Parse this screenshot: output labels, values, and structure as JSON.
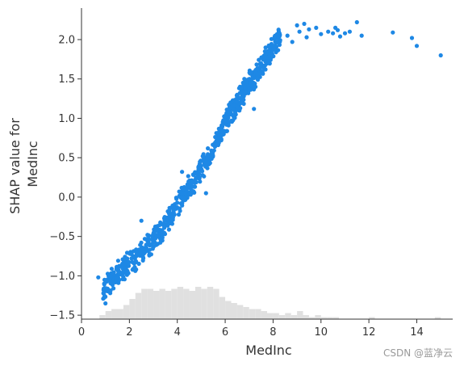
{
  "chart_data": {
    "type": "scatter",
    "xlabel": "MedInc",
    "ylabel_lines": [
      "SHAP value for",
      "MedInc"
    ],
    "xlim": [
      0,
      15.5
    ],
    "ylim": [
      -1.55,
      2.4
    ],
    "xticks": [
      0,
      2,
      4,
      6,
      8,
      10,
      12,
      14
    ],
    "yticks": [
      -1.5,
      -1.0,
      -0.5,
      0.0,
      0.5,
      1.0,
      1.5,
      2.0
    ],
    "ytick_labels": [
      "−1.5",
      "−1.0",
      "−0.5",
      "0.0",
      "0.5",
      "1.0",
      "1.5",
      "2.0"
    ],
    "grid": false,
    "legend": "none",
    "point_color": "#1e88e5",
    "histogram_color": "#e0e0e0",
    "trend": [
      [
        0.5,
        -1.05
      ],
      [
        1.0,
        -1.15
      ],
      [
        1.5,
        -0.95
      ],
      [
        2.0,
        -0.85
      ],
      [
        2.5,
        -0.7
      ],
      [
        3.0,
        -0.55
      ],
      [
        3.5,
        -0.35
      ],
      [
        4.0,
        -0.1
      ],
      [
        4.5,
        0.12
      ],
      [
        5.0,
        0.35
      ],
      [
        5.5,
        0.6
      ],
      [
        6.0,
        0.95
      ],
      [
        6.5,
        1.2
      ],
      [
        7.0,
        1.45
      ],
      [
        7.5,
        1.65
      ],
      [
        8.0,
        1.9
      ],
      [
        8.5,
        2.12
      ]
    ],
    "outliers": [
      [
        0.7,
        -1.02
      ],
      [
        1.0,
        -1.35
      ],
      [
        1.2,
        -1.22
      ],
      [
        2.5,
        -0.3
      ],
      [
        4.2,
        0.32
      ],
      [
        5.2,
        0.05
      ],
      [
        6.8,
        1.5
      ],
      [
        7.2,
        1.12
      ],
      [
        8.6,
        2.05
      ],
      [
        8.8,
        1.97
      ],
      [
        9.0,
        2.18
      ],
      [
        9.1,
        2.1
      ],
      [
        9.3,
        2.2
      ],
      [
        9.4,
        2.03
      ],
      [
        9.5,
        2.13
      ],
      [
        9.8,
        2.15
      ],
      [
        10.0,
        2.07
      ],
      [
        10.3,
        2.1
      ],
      [
        10.5,
        2.08
      ],
      [
        10.6,
        2.15
      ],
      [
        10.7,
        2.12
      ],
      [
        10.8,
        2.04
      ],
      [
        11.0,
        2.08
      ],
      [
        11.2,
        2.1
      ],
      [
        11.5,
        2.22
      ],
      [
        11.7,
        2.05
      ],
      [
        13.0,
        2.09
      ],
      [
        13.8,
        2.02
      ],
      [
        14.0,
        1.92
      ],
      [
        15.0,
        1.8
      ]
    ],
    "histogram": {
      "bin_start": 0.5,
      "bin_width": 0.25,
      "counts": [
        0,
        2,
        4,
        5,
        5,
        7,
        10,
        13,
        15,
        15,
        14,
        15,
        14,
        15,
        16,
        15,
        14,
        16,
        15,
        16,
        15,
        11,
        9,
        8,
        7,
        6,
        5,
        5,
        4,
        3,
        3,
        2,
        3,
        2,
        4,
        2,
        1,
        2,
        1,
        1,
        1,
        0,
        0,
        0,
        0,
        0,
        1,
        0,
        0,
        0,
        0,
        0,
        0,
        0,
        0,
        0,
        0,
        1,
        0,
        0,
        0,
        0,
        0,
        0,
        0,
        0,
        0,
        1,
        0,
        0,
        0,
        0,
        0,
        0,
        0,
        0,
        0,
        0,
        0,
        0,
        0,
        1,
        0,
        0,
        0,
        0,
        0,
        0,
        0,
        0,
        0,
        0,
        0,
        0,
        0,
        0,
        0,
        0,
        0,
        0,
        0,
        0,
        0,
        0,
        0,
        0,
        0,
        0,
        0,
        0,
        0,
        0,
        0,
        0,
        0,
        0,
        0,
        0,
        0,
        0,
        0,
        0,
        0,
        0,
        0,
        0,
        0,
        0,
        0,
        0,
        0,
        0,
        0,
        0,
        0,
        0,
        0,
        0,
        0,
        0,
        0,
        0,
        0,
        0,
        0,
        0,
        0,
        0,
        0,
        0,
        0,
        0,
        0,
        0,
        0
      ],
      "max_count": 16
    }
  },
  "watermark": "CSDN @蓝净云"
}
